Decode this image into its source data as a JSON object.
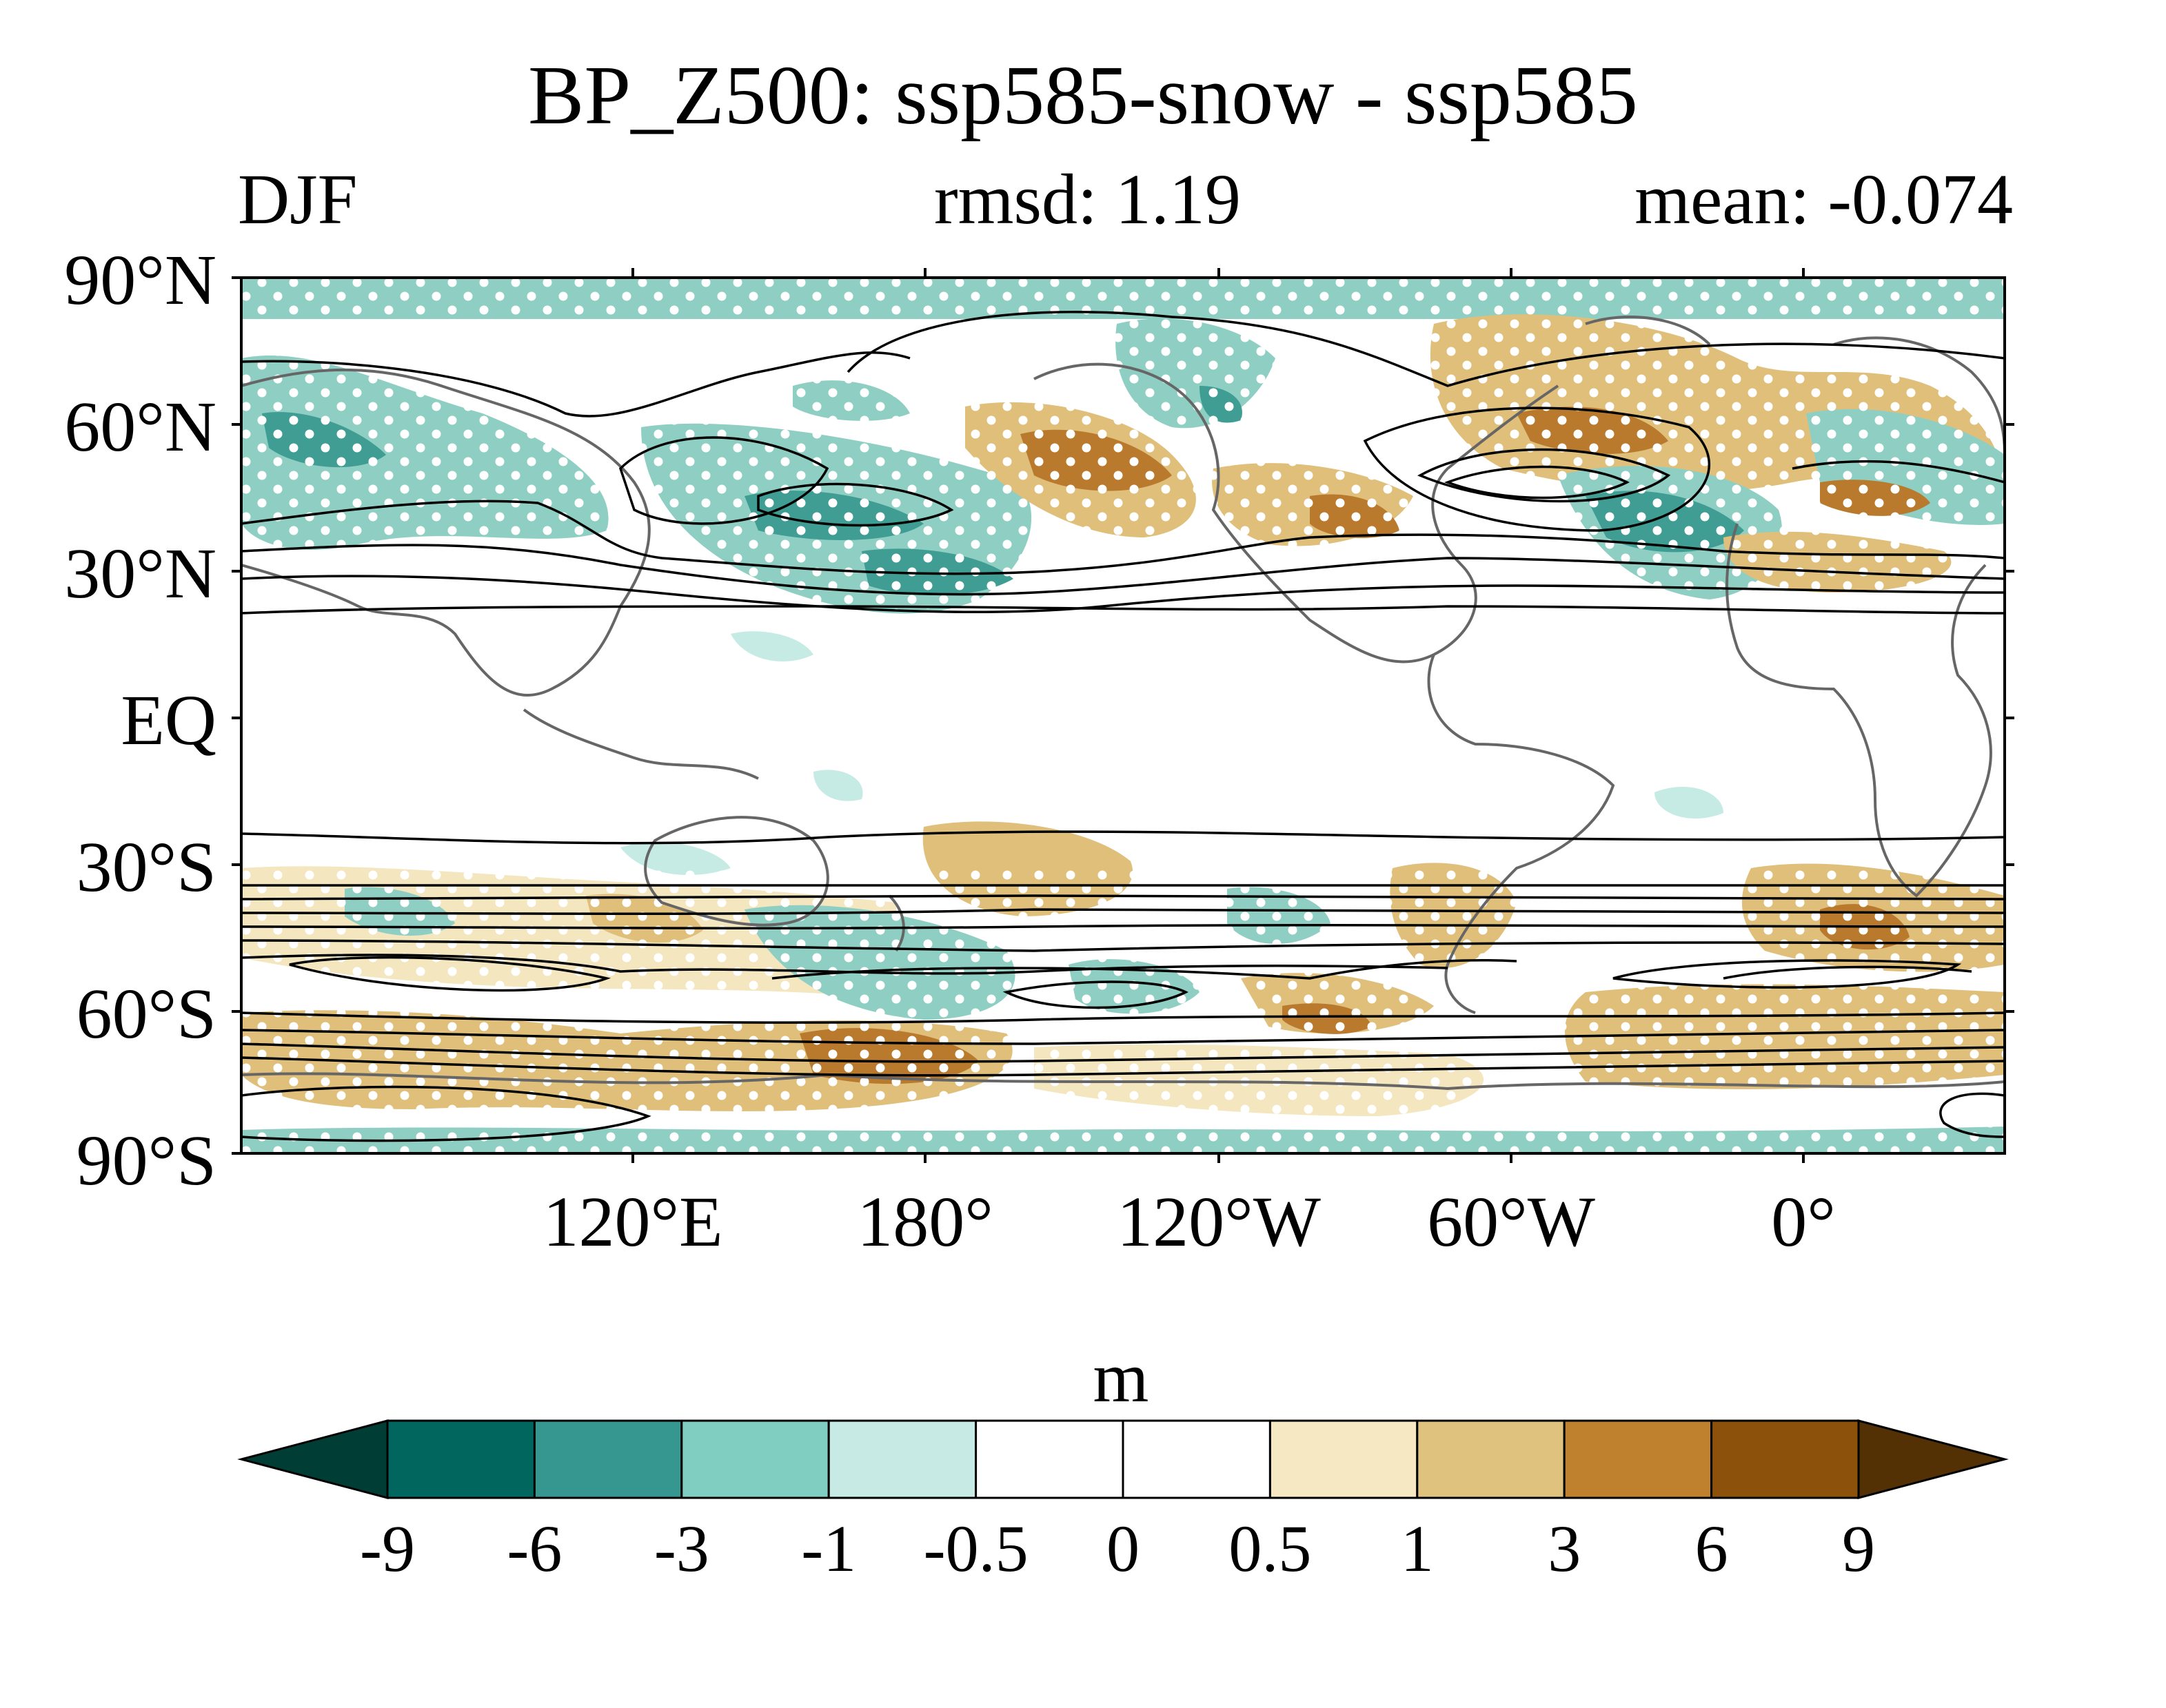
{
  "title": "BP_Z500: ssp585-snow - ssp585",
  "season": "DJF",
  "rmsd": "rmsd: 1.19",
  "mean": "mean: -0.074",
  "map": {
    "lat_labels": [
      "90°N",
      "60°N",
      "30°N",
      "EQ",
      "30°S",
      "60°S",
      "90°S"
    ],
    "lon_labels": [
      "120°E",
      "180°",
      "120°W",
      "60°W",
      "0°"
    ],
    "shading_colors": {
      "neg_strong": "#1f6b67",
      "neg_mid": "#5fb6a9",
      "neg_weak": "#c6ebe4",
      "pos_weak": "#f4e6bf",
      "pos_mid": "#dfbf7a",
      "pos_strong": "#b97a2e"
    },
    "stippling": "white dots",
    "contours": "black lines",
    "coastlines": "gray lines"
  },
  "colorbar": {
    "unit": "m",
    "ticks": [
      "-9",
      "-6",
      "-3",
      "-1",
      "-0.5",
      "0",
      "0.5",
      "1",
      "3",
      "6",
      "9"
    ],
    "colors": [
      "#003d34",
      "#01665e",
      "#35978f",
      "#80cdc1",
      "#c7eae5",
      "#ffffff",
      "#ffffff",
      "#f6e8c3",
      "#dfc27d",
      "#bf812d",
      "#8c510a",
      "#543005"
    ]
  }
}
